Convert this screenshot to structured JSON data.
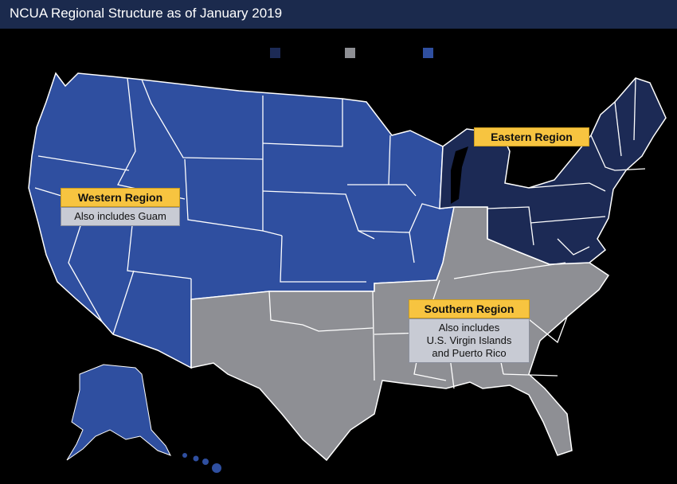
{
  "title": "NCUA Regional Structure as of January 2019",
  "colors": {
    "eastern": "#1c2a55",
    "southern": "#8e8f94",
    "western": "#2f4fa0",
    "border": "#ffffff",
    "background": "#000000",
    "label_head": "#f7c440",
    "label_note": "#c8cbd4"
  },
  "legend": [
    {
      "region": "eastern",
      "color": "#1c2a55"
    },
    {
      "region": "southern",
      "color": "#8e8f94"
    },
    {
      "region": "western",
      "color": "#2f4fa0"
    }
  ],
  "labels": {
    "eastern": {
      "head": "Eastern Region"
    },
    "western": {
      "head": "Western Region",
      "note": "Also includes Guam"
    },
    "southern": {
      "head": "Southern Region",
      "note_lines": [
        "Also includes",
        "U.S. Virgin Islands",
        "and Puerto Rico"
      ]
    }
  }
}
